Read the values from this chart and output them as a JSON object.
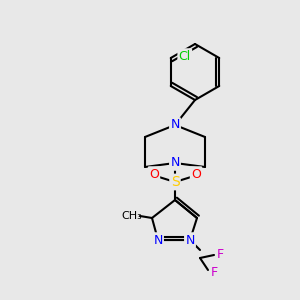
{
  "bg_color": "#e8e8e8",
  "bond_color": "#000000",
  "bond_lw": 1.5,
  "atom_colors": {
    "N": "#0000ff",
    "S": "#ffcc00",
    "O": "#ff0000",
    "Cl": "#00cc00",
    "F": "#cc00cc",
    "C": "#000000"
  },
  "font_size": 9
}
